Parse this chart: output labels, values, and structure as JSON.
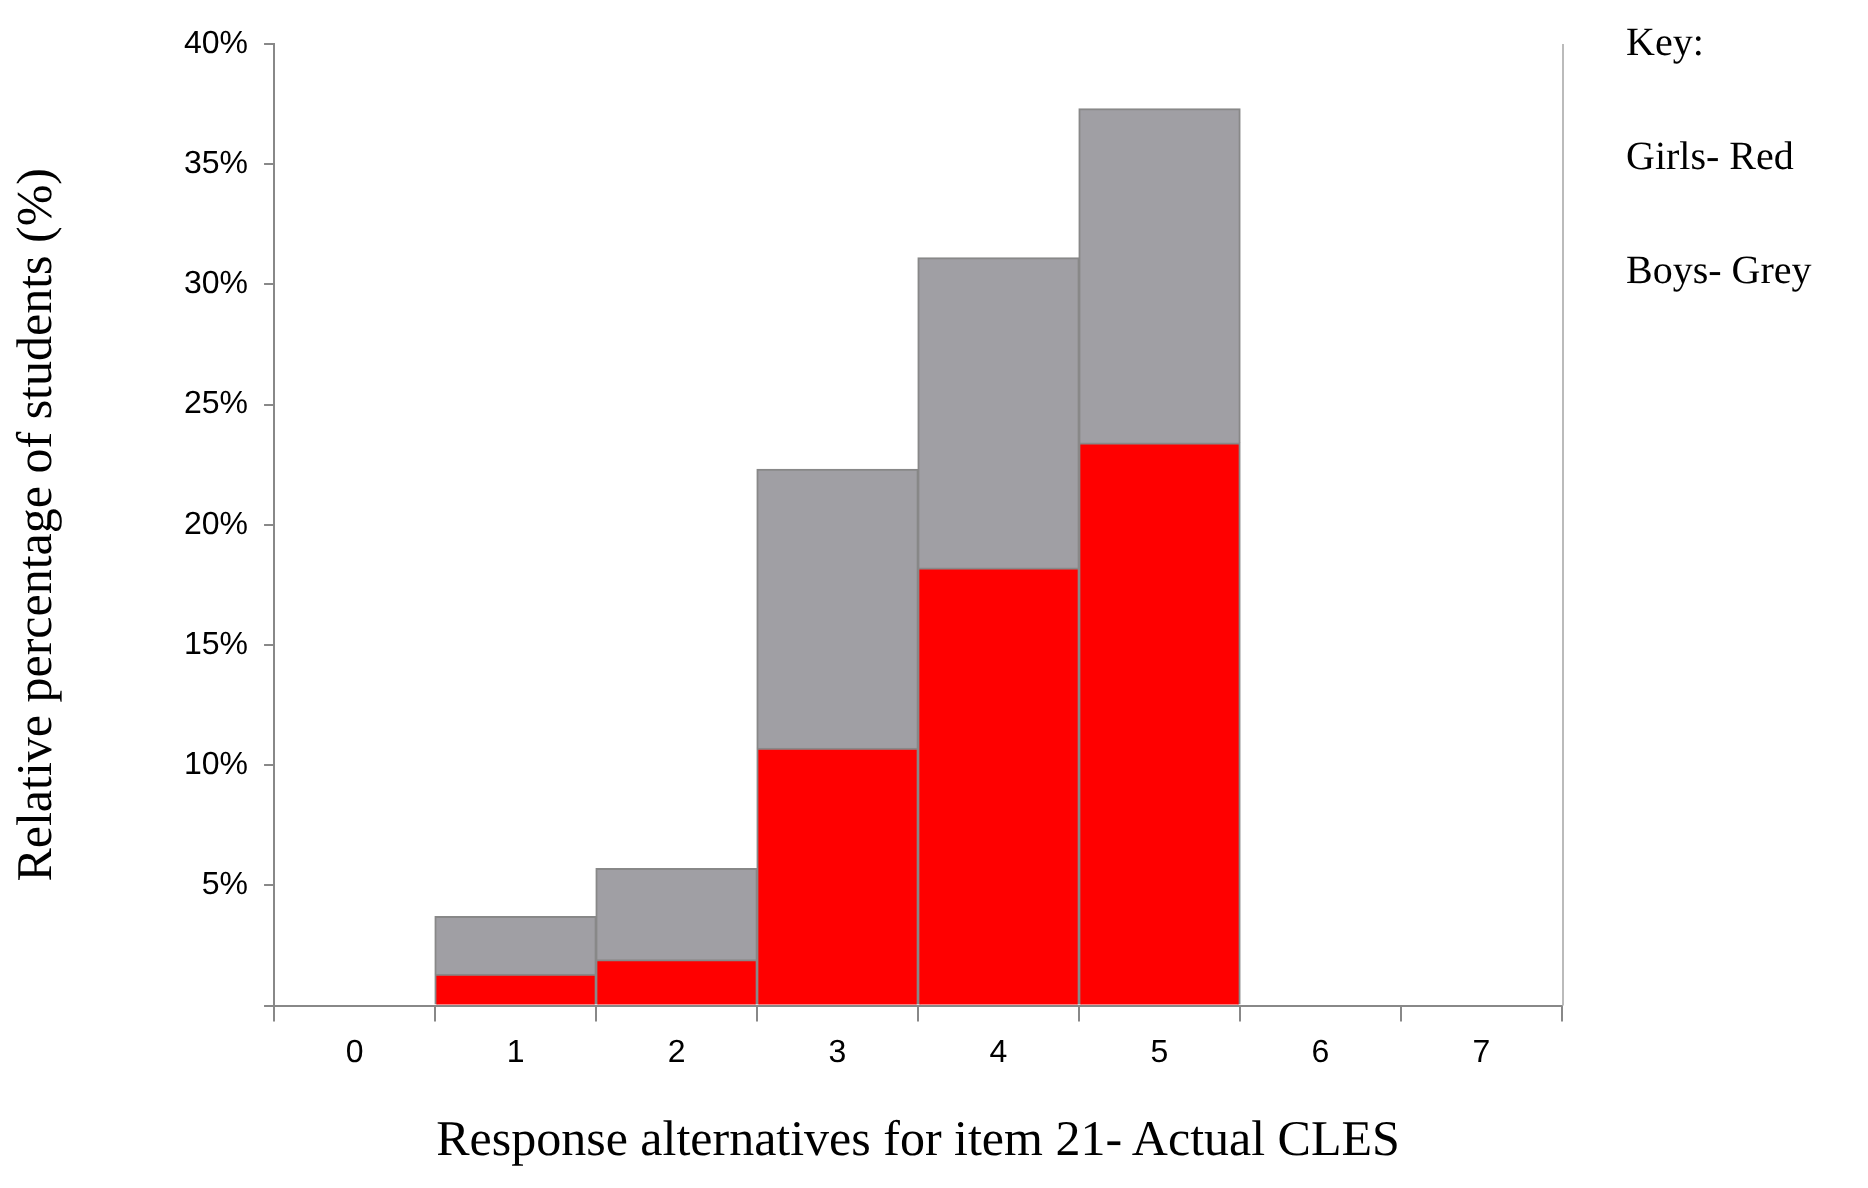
{
  "chart_data": {
    "type": "bar",
    "stacked": true,
    "xlabel": "Response alternatives for item 21- Actual CLES",
    "ylabel": "Relative percentage of students (%)",
    "categories": [
      "0",
      "1",
      "2",
      "3",
      "4",
      "5",
      "6",
      "7"
    ],
    "series": [
      {
        "color": "#ff0000",
        "values": [
          null,
          1.3,
          1.9,
          10.7,
          18.2,
          23.4,
          null,
          null
        ]
      },
      {
        "color": "#a09fa4",
        "values": [
          null,
          2.4,
          3.8,
          11.6,
          12.9,
          13.9,
          null,
          null
        ]
      }
    ],
    "ylim": [
      0,
      40
    ],
    "yticks": [
      {
        "value": 0,
        "label": null
      },
      {
        "value": 5,
        "label": "5%"
      },
      {
        "value": 10,
        "label": "10%"
      },
      {
        "value": 15,
        "label": "15%"
      },
      {
        "value": 20,
        "label": "20%"
      },
      {
        "value": 25,
        "label": "25%"
      },
      {
        "value": 30,
        "label": "30%"
      },
      {
        "value": 35,
        "label": "35%"
      },
      {
        "value": 40,
        "label": "40%"
      }
    ],
    "grid": false,
    "legend": false,
    "annotations": [
      "Key:",
      "Girls- Red",
      "Boys- Grey"
    ]
  }
}
